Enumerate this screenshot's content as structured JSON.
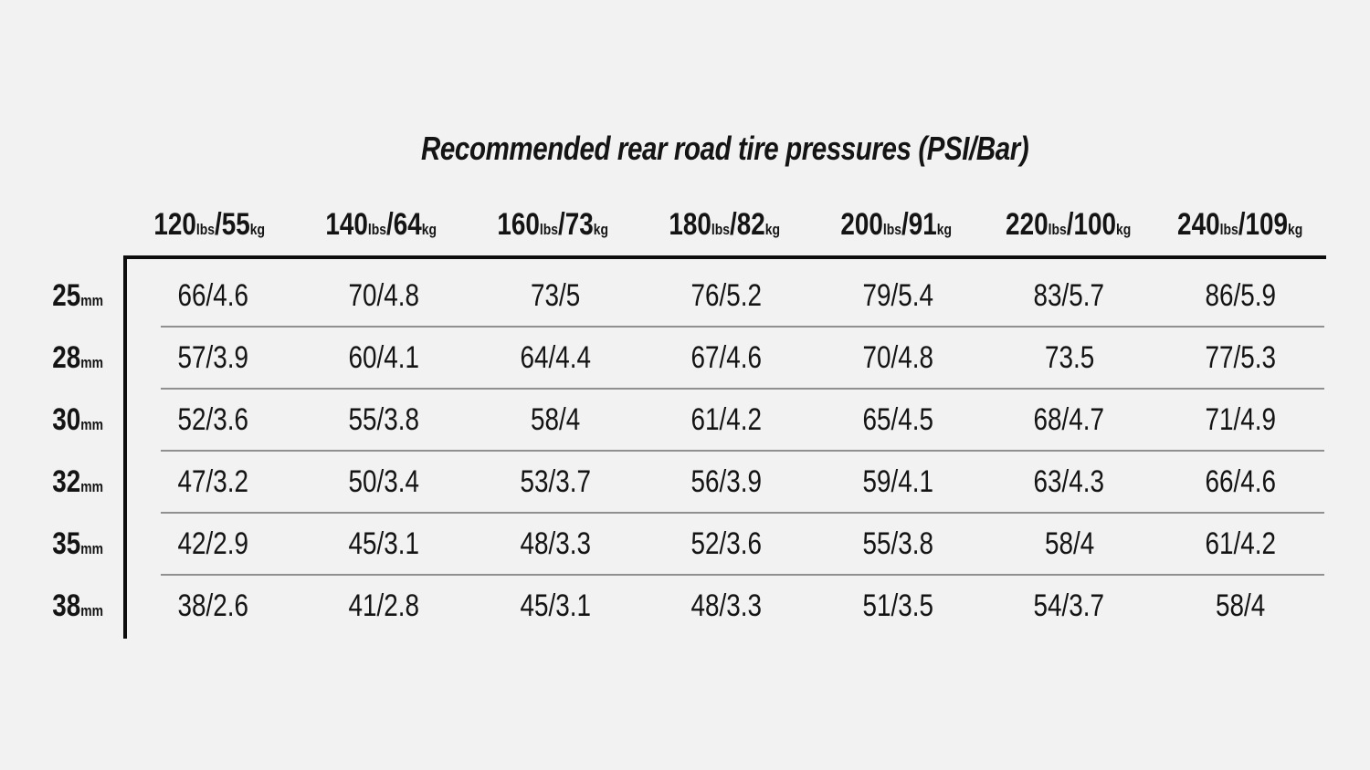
{
  "colors": {
    "background": "#f2f2f2",
    "text": "#141414",
    "frame_line": "#0d0d0d",
    "row_separator": "#909090"
  },
  "chart_data": {
    "type": "table",
    "title": "Recommended rear road tire pressures (PSI/Bar)",
    "column_headers": [
      "120lbs/55kg",
      "140lbs/64kg",
      "160lbs/73kg",
      "180lbs/82kg",
      "200lbs/91kg",
      "220lbs/100kg",
      "240lbs/109kg"
    ],
    "row_headers": [
      "25mm",
      "28mm",
      "30mm",
      "32mm",
      "35mm",
      "38mm"
    ],
    "rows": [
      [
        "66/4.6",
        "70/4.8",
        "73/5",
        "76/5.2",
        "79/5.4",
        "83/5.7",
        "86/5.9"
      ],
      [
        "57/3.9",
        "60/4.1",
        "64/4.4",
        "67/4.6",
        "70/4.8",
        "73.5",
        "77/5.3"
      ],
      [
        "52/3.6",
        "55/3.8",
        "58/4",
        "61/4.2",
        "65/4.5",
        "68/4.7",
        "71/4.9"
      ],
      [
        "47/3.2",
        "50/3.4",
        "53/3.7",
        "56/3.9",
        "59/4.1",
        "63/4.3",
        "66/4.6"
      ],
      [
        "42/2.9",
        "45/3.1",
        "48/3.3",
        "52/3.6",
        "55/3.8",
        "58/4",
        "61/4.2"
      ],
      [
        "38/2.6",
        "41/2.8",
        "45/3.1",
        "48/3.3",
        "51/3.5",
        "54/3.7",
        "58/4"
      ]
    ],
    "layout": {
      "grid": "horizontal row separators only",
      "units_style": "subscript"
    }
  }
}
